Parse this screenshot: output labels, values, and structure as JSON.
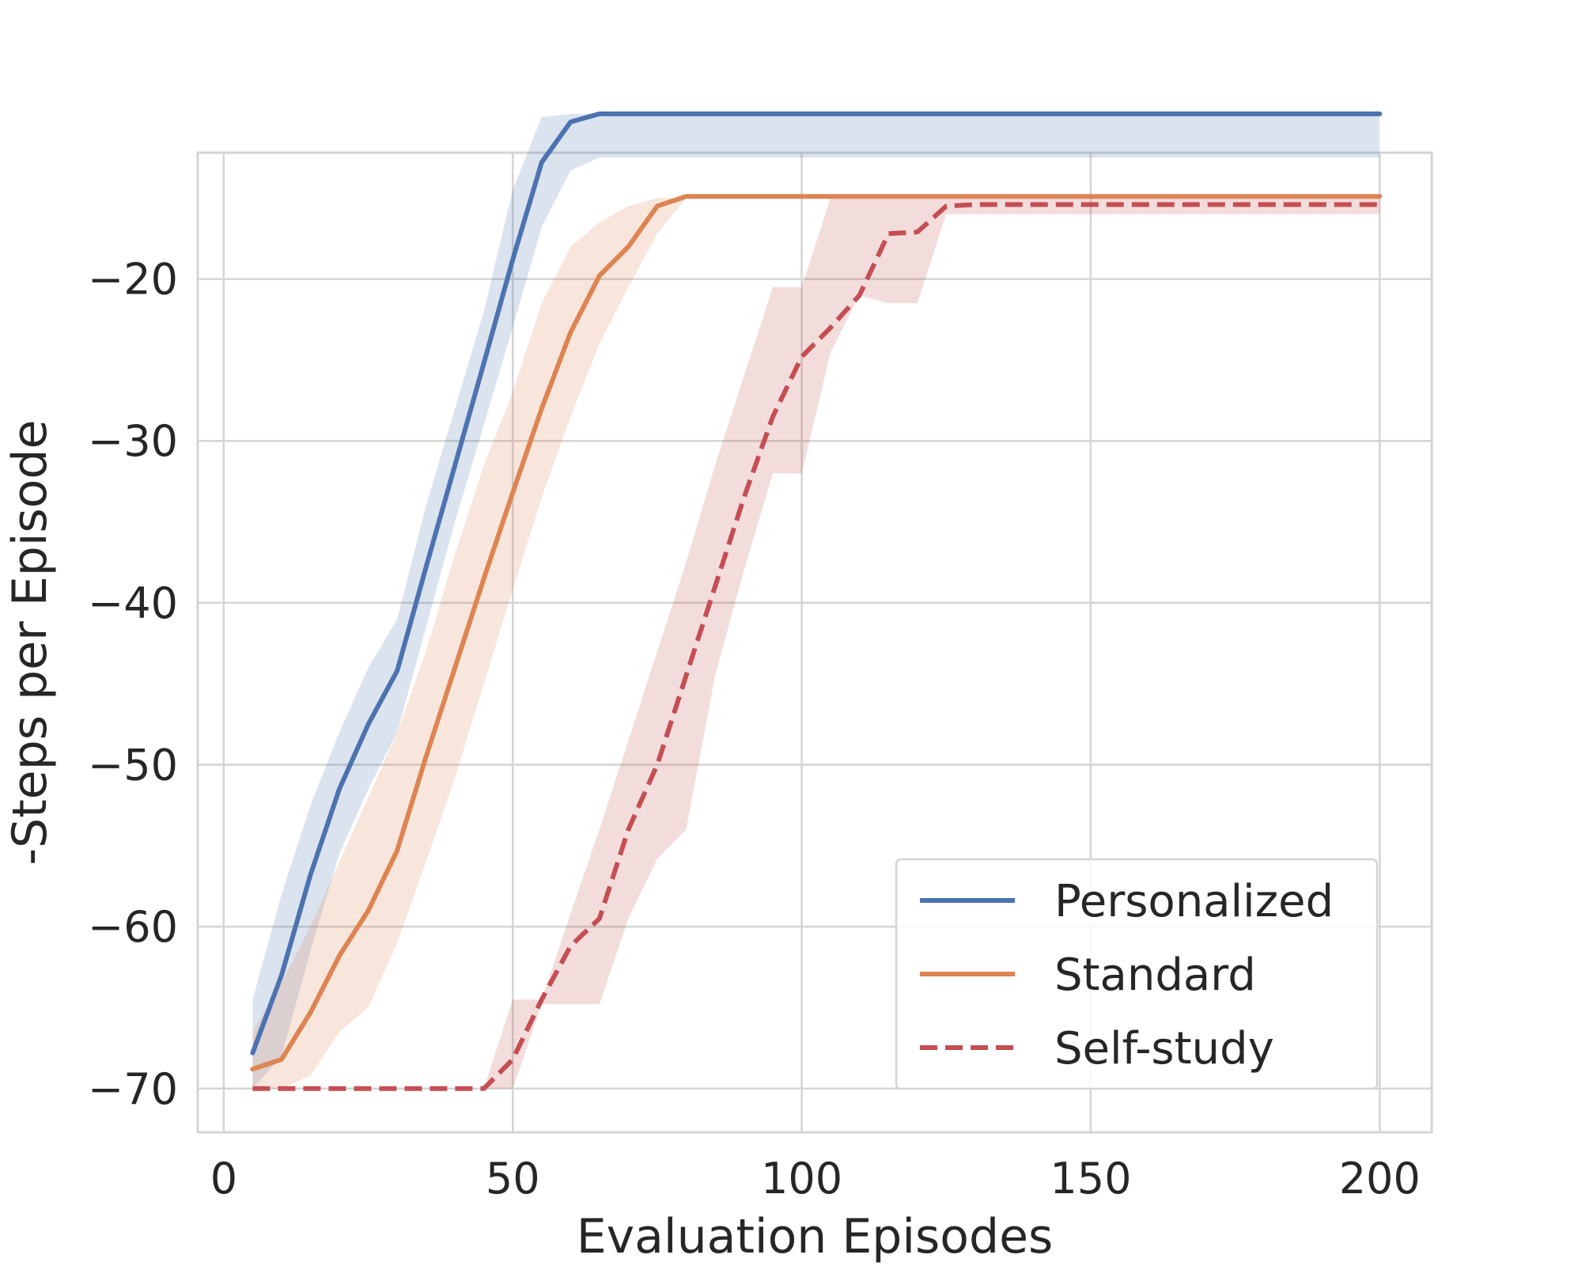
{
  "chart_data": {
    "type": "line",
    "title": "",
    "xlabel": "Evaluation Episodes",
    "ylabel": "-Steps per Episode",
    "xlim": [
      -4.5,
      209
    ],
    "ylim": [
      -72.7,
      -12.2
    ],
    "xticks": [
      0,
      50,
      100,
      150,
      200
    ],
    "yticks": [
      -20,
      -30,
      -40,
      -50,
      -60,
      -70
    ],
    "xtick_labels": [
      "0",
      "50",
      "100",
      "150",
      "200"
    ],
    "ytick_labels": [
      "−20",
      "−30",
      "−40",
      "−50",
      "−60",
      "−70"
    ],
    "grid": true,
    "legend_position": "lower-right",
    "series": [
      {
        "name": "Personalized",
        "color": "#4c72b0",
        "dash": "solid",
        "x": [
          5,
          10,
          15,
          20,
          25,
          30,
          35,
          40,
          45,
          50,
          55,
          60,
          65,
          70,
          75,
          80,
          200
        ],
        "y": [
          -67.8,
          -63.0,
          -56.8,
          -51.5,
          -47.5,
          -44.2,
          -37.8,
          -31.5,
          -25.2,
          -18.8,
          -12.8,
          -10.3,
          -9.8,
          -9.8,
          -9.8,
          -9.8,
          -9.8
        ],
        "band_lower": [
          -70.0,
          -68.0,
          -61.5,
          -55.5,
          -51.5,
          -48.0,
          -41.5,
          -35.0,
          -29.0,
          -23.0,
          -16.8,
          -13.3,
          -12.5,
          -12.5,
          -12.5,
          -12.5,
          -12.5
        ],
        "band_upper": [
          -64.5,
          -58.0,
          -52.5,
          -48.0,
          -44.0,
          -41.0,
          -34.0,
          -28.0,
          -22.0,
          -14.5,
          -10.0,
          -9.8,
          -9.8,
          -9.8,
          -9.8,
          -9.8,
          -9.8
        ]
      },
      {
        "name": "Standard",
        "color": "#dd8452",
        "dash": "solid",
        "x": [
          5,
          10,
          15,
          20,
          25,
          30,
          35,
          40,
          45,
          50,
          55,
          60,
          65,
          70,
          75,
          80,
          200
        ],
        "y": [
          -68.8,
          -68.2,
          -65.3,
          -61.8,
          -59.0,
          -55.3,
          -49.5,
          -44.0,
          -38.5,
          -33.2,
          -28.0,
          -23.3,
          -19.8,
          -18.0,
          -15.5,
          -14.9,
          -14.9
        ],
        "band_lower": [
          -70.0,
          -70.0,
          -69.2,
          -66.5,
          -65.0,
          -61.0,
          -56.0,
          -50.8,
          -45.0,
          -39.2,
          -33.5,
          -28.5,
          -24.0,
          -20.5,
          -17.2,
          -15.0,
          -15.0
        ],
        "band_upper": [
          -66.5,
          -63.5,
          -60.0,
          -56.0,
          -52.0,
          -48.0,
          -43.0,
          -37.0,
          -31.5,
          -27.0,
          -21.5,
          -18.0,
          -16.5,
          -15.5,
          -15.0,
          -15.0,
          -15.0
        ]
      },
      {
        "name": "Self-study",
        "color": "#c44e52",
        "dash": "dashed",
        "x": [
          5,
          10,
          15,
          20,
          25,
          30,
          35,
          40,
          45,
          50,
          55,
          60,
          65,
          70,
          75,
          80,
          85,
          90,
          95,
          100,
          105,
          110,
          115,
          120,
          125,
          130,
          200
        ],
        "y": [
          -70.0,
          -70.0,
          -70.0,
          -70.0,
          -70.0,
          -70.0,
          -70.0,
          -70.0,
          -70.0,
          -68.2,
          -64.5,
          -61.2,
          -59.5,
          -54.0,
          -50.0,
          -44.5,
          -39.0,
          -33.5,
          -28.5,
          -24.8,
          -23.0,
          -21.0,
          -17.2,
          -17.1,
          -15.5,
          -15.4,
          -15.4
        ],
        "band_lower": [
          -70.0,
          -70.0,
          -70.0,
          -70.0,
          -70.0,
          -70.0,
          -70.0,
          -70.0,
          -70.0,
          -70.0,
          -64.8,
          -64.8,
          -64.8,
          -59.5,
          -55.8,
          -54.0,
          -44.5,
          -38.0,
          -32.0,
          -32.0,
          -24.5,
          -21.0,
          -21.5,
          -21.5,
          -16.0,
          -16.0,
          -16.0
        ],
        "band_upper": [
          -70.0,
          -70.0,
          -70.0,
          -70.0,
          -70.0,
          -70.0,
          -70.0,
          -70.0,
          -70.0,
          -64.5,
          -64.5,
          -59.2,
          -54.0,
          -48.5,
          -43.0,
          -37.5,
          -31.5,
          -26.0,
          -20.5,
          -20.5,
          -15.0,
          -15.0,
          -15.0,
          -15.0,
          -15.0,
          -15.0,
          -15.0
        ]
      }
    ]
  }
}
